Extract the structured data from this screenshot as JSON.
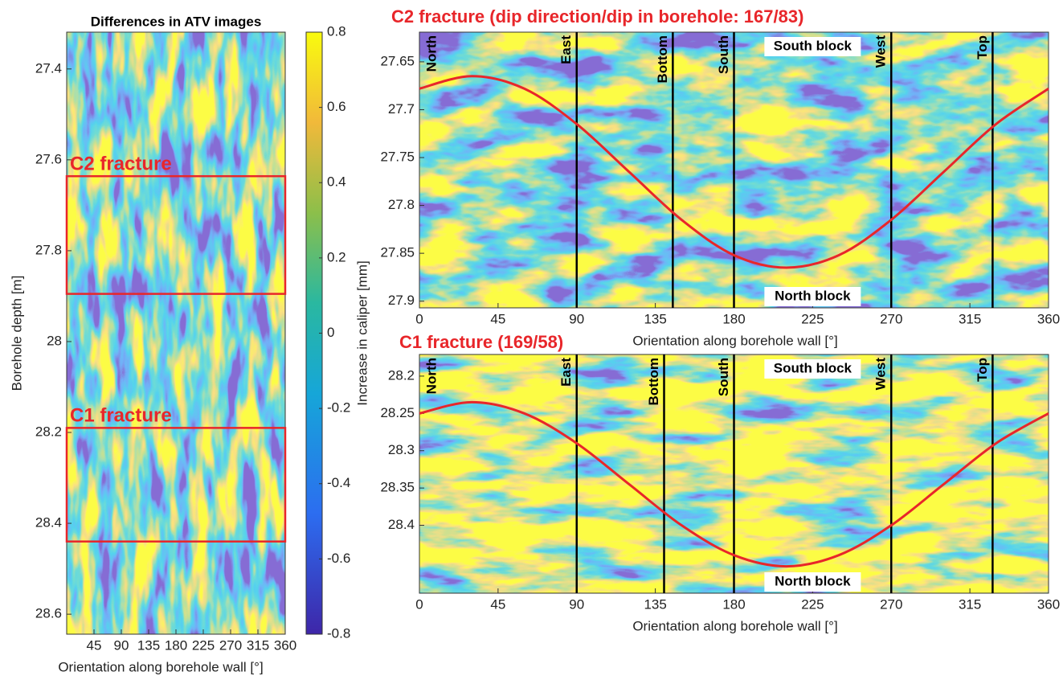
{
  "chart_data": [
    {
      "type": "heatmap",
      "title": "Differences in ATV images",
      "xlabel": "Orientation along borehole wall [°]",
      "ylabel": "Borehole depth [m]",
      "xlim": [
        0,
        360
      ],
      "xticks": [
        45,
        90,
        135,
        180,
        225,
        270,
        315,
        360
      ],
      "ylim": [
        27.319,
        28.644
      ],
      "yticks": [
        27.4,
        27.6,
        27.8,
        28,
        28.2,
        28.4,
        28.6
      ],
      "colorbar": {
        "label": "Increase in caliper [mm]",
        "lim": [
          -0.8,
          0.8
        ],
        "ticks": [
          -0.8,
          -0.6,
          -0.4,
          -0.2,
          0,
          0.2,
          0.4,
          0.6,
          0.8
        ]
      },
      "boxes": [
        {
          "label": "C2 fracture",
          "ylim": [
            27.636,
            27.895
          ],
          "color": "#e8262a"
        },
        {
          "label": "C1 fracture",
          "ylim": [
            28.19,
            28.44
          ],
          "color": "#e8262a"
        }
      ]
    },
    {
      "type": "heatmap",
      "title": "C2 fracture (dip direction/dip in borehole: 167/83)",
      "xlabel": "Orientation along borehole wall [°]",
      "xlim": [
        0,
        360
      ],
      "xticks": [
        0,
        45,
        90,
        135,
        180,
        225,
        270,
        315,
        360
      ],
      "ylim": [
        27.619,
        27.907
      ],
      "yticks": [
        27.65,
        27.7,
        27.75,
        27.8,
        27.85,
        27.9
      ],
      "markers": [
        {
          "label": "North",
          "x": 0,
          "line": false
        },
        {
          "label": "East",
          "x": 90,
          "line": true
        },
        {
          "label": "Bottom",
          "x": 145,
          "line": true
        },
        {
          "label": "South",
          "x": 180,
          "line": true
        },
        {
          "label": "West",
          "x": 270,
          "line": true
        },
        {
          "label": "Top",
          "x": 328,
          "line": true
        }
      ],
      "block_labels": [
        "South block",
        "North block"
      ],
      "curve": {
        "color": "#e8262a",
        "x": [
          0,
          30,
          60,
          90,
          120,
          150,
          180,
          210,
          240,
          270,
          300,
          330,
          360
        ],
        "values": [
          27.678,
          27.665,
          27.678,
          27.715,
          27.765,
          27.815,
          27.852,
          27.865,
          27.852,
          27.815,
          27.765,
          27.715,
          27.678
        ]
      }
    },
    {
      "type": "heatmap",
      "title": "C1 fracture (169/58)",
      "xlabel": "Orientation along borehole wall [°]",
      "xlim": [
        0,
        360
      ],
      "xticks": [
        0,
        45,
        90,
        135,
        180,
        225,
        270,
        315,
        360
      ],
      "ylim": [
        28.171,
        28.491
      ],
      "yticks": [
        28.2,
        28.25,
        28.3,
        28.35,
        28.4
      ],
      "markers": [
        {
          "label": "North",
          "x": 0,
          "line": false
        },
        {
          "label": "East",
          "x": 90,
          "line": true
        },
        {
          "label": "Bottom",
          "x": 140,
          "line": true
        },
        {
          "label": "South",
          "x": 180,
          "line": true
        },
        {
          "label": "West",
          "x": 270,
          "line": true
        },
        {
          "label": "Top",
          "x": 328,
          "line": true
        }
      ],
      "block_labels": [
        "South block",
        "North block"
      ],
      "curve": {
        "color": "#e8262a",
        "x": [
          0,
          30,
          60,
          90,
          120,
          150,
          180,
          210,
          240,
          270,
          300,
          330,
          360
        ],
        "values": [
          28.25,
          28.235,
          28.25,
          28.29,
          28.345,
          28.4,
          28.44,
          28.455,
          28.44,
          28.4,
          28.345,
          28.29,
          28.25
        ]
      }
    }
  ]
}
